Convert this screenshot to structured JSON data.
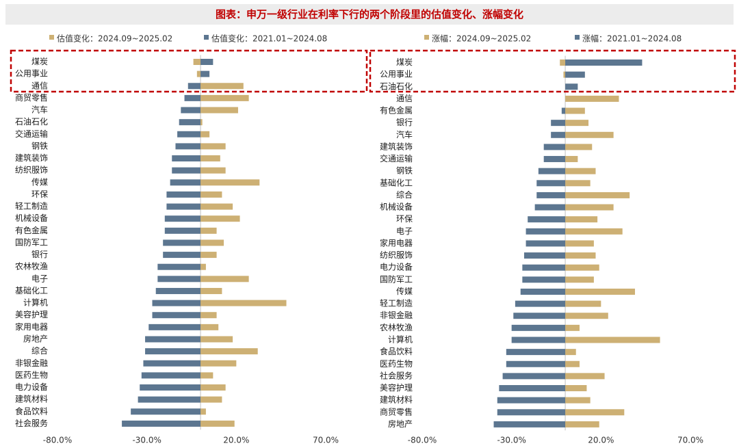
{
  "title": "图表：申万一级行业在利率下行的两个阶段里的估值变化、涨幅变化",
  "colors": {
    "series_recent": "#cdb074",
    "series_past": "#5c7690",
    "highlight_box": "#c00000",
    "zero_line": "#bfbfbf"
  },
  "chart_data": [
    {
      "type": "bar",
      "orientation": "horizontal",
      "legend_position": "top",
      "grid": false,
      "xlim": [
        -80,
        70
      ],
      "xticks": [
        "-80.0%",
        "-30.0%",
        "20.0%",
        "70.0%"
      ],
      "tick_values": [
        -80,
        -30,
        20,
        70
      ],
      "categories": [
        "煤炭",
        "公用事业",
        "通信",
        "商贸零售",
        "汽车",
        "石油石化",
        "交通运输",
        "钢铁",
        "建筑装饰",
        "纺织服饰",
        "传媒",
        "环保",
        "轻工制造",
        "机械设备",
        "有色金属",
        "国防军工",
        "银行",
        "农林牧渔",
        "电子",
        "基础化工",
        "计算机",
        "美容护理",
        "家用电器",
        "房地产",
        "综合",
        "非银金融",
        "医药生物",
        "电力设备",
        "建筑材料",
        "食品饮料",
        "社会服务"
      ],
      "series": [
        {
          "name": "估值变化：2024.09~2025.02",
          "color": "#cdb074",
          "values": [
            -4,
            -2,
            24,
            27,
            21,
            1,
            5,
            14,
            11,
            14,
            33,
            12,
            18,
            22,
            9,
            13,
            9,
            3,
            27,
            12,
            48,
            9,
            10,
            18,
            32,
            20,
            7,
            14,
            12,
            3,
            19
          ]
        },
        {
          "name": "估值变化：2021.01~2024.08",
          "color": "#5c7690",
          "values": [
            7,
            5,
            -7,
            -9,
            -11,
            -12,
            -13,
            -14,
            -16,
            -16,
            -17,
            -19,
            -19,
            -20,
            -20,
            -21,
            -21,
            -24,
            -24,
            -25,
            -27,
            -27,
            -29,
            -31,
            -31,
            -32,
            -33,
            -34,
            -35,
            -39,
            -44
          ]
        }
      ],
      "highlight_rows": [
        0,
        2
      ]
    },
    {
      "type": "bar",
      "orientation": "horizontal",
      "legend_position": "top",
      "grid": false,
      "xlim": [
        -80,
        70
      ],
      "xticks": [
        "-80.0%",
        "-30.0%",
        "20.0%",
        "70.0%"
      ],
      "tick_values": [
        -80,
        -30,
        20,
        70
      ],
      "categories": [
        "煤炭",
        "公用事业",
        "石油石化",
        "通信",
        "有色金属",
        "银行",
        "汽车",
        "建筑装饰",
        "交通运输",
        "钢铁",
        "基础化工",
        "综合",
        "机械设备",
        "环保",
        "电子",
        "家用电器",
        "纺织服饰",
        "电力设备",
        "国防军工",
        "传媒",
        "轻工制造",
        "非银金融",
        "农林牧渔",
        "计算机",
        "食品饮料",
        "医药生物",
        "社会服务",
        "美容护理",
        "建筑材料",
        "商贸零售",
        "房地产"
      ],
      "series": [
        {
          "name": "涨幅：2024.09~2025.02",
          "color": "#cdb074",
          "values": [
            -3,
            -1,
            0,
            30,
            11,
            13,
            27,
            15,
            7,
            17,
            14,
            36,
            27,
            18,
            32,
            16,
            17,
            19,
            16,
            39,
            20,
            24,
            8,
            53,
            6,
            8,
            22,
            12,
            14,
            33,
            19
          ]
        },
        {
          "name": "涨幅：2021.01~2024.08",
          "color": "#5c7690",
          "values": [
            43,
            11,
            7,
            0,
            -2,
            -8,
            -8,
            -12,
            -12,
            -15,
            -16,
            -16,
            -17,
            -21,
            -22,
            -22,
            -23,
            -24,
            -24,
            -25,
            -28,
            -29,
            -30,
            -30,
            -33,
            -33,
            -35,
            -37,
            -38,
            -38,
            -40
          ]
        }
      ],
      "highlight_rows": [
        0,
        2
      ]
    }
  ]
}
